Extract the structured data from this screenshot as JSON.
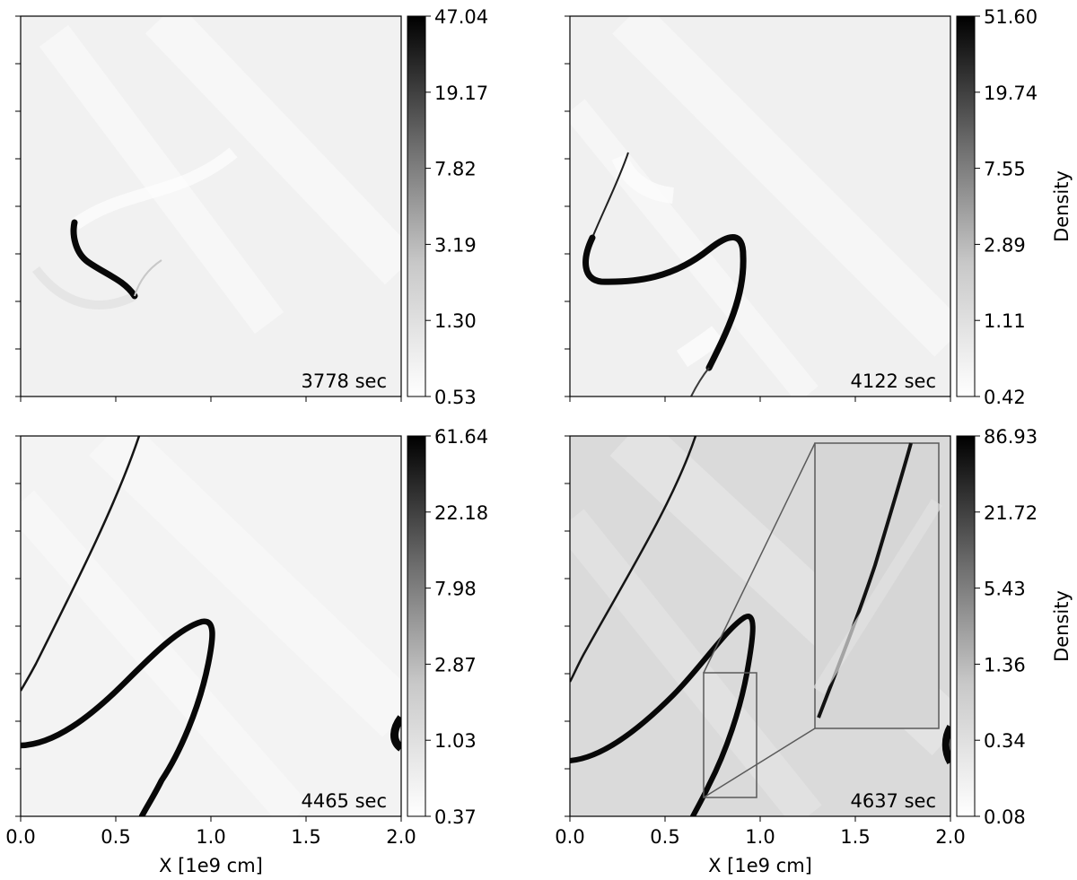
{
  "chart_data": [
    {
      "type": "heatmap",
      "panel": "top-left",
      "time_label": "3778 sec",
      "colorbar": {
        "ticks": [
          "47.04",
          "19.17",
          "7.82",
          "3.19",
          "1.30",
          "0.53"
        ],
        "scale": "log",
        "label": ""
      },
      "x_ticks": [],
      "xlabel": ""
    },
    {
      "type": "heatmap",
      "panel": "top-right",
      "time_label": "4122 sec",
      "colorbar": {
        "ticks": [
          "51.60",
          "19.74",
          "7.55",
          "2.89",
          "1.11",
          "0.42"
        ],
        "scale": "log",
        "label": "Density"
      },
      "x_ticks": [],
      "xlabel": ""
    },
    {
      "type": "heatmap",
      "panel": "bottom-left",
      "time_label": "4465 sec",
      "colorbar": {
        "ticks": [
          "61.64",
          "22.18",
          "7.98",
          "2.87",
          "1.03",
          "0.37"
        ],
        "scale": "log",
        "label": ""
      },
      "x_ticks": [
        "0.0",
        "0.5",
        "1.0",
        "1.5",
        "2.0"
      ],
      "xlabel": "X [1e9 cm]",
      "xlim": [
        0,
        2
      ]
    },
    {
      "type": "heatmap",
      "panel": "bottom-right",
      "time_label": "4637 sec",
      "colorbar": {
        "ticks": [
          "86.93",
          "21.72",
          "5.43",
          "1.36",
          "0.34",
          "0.08"
        ],
        "scale": "log",
        "label": "Density"
      },
      "x_ticks": [
        "0.0",
        "0.5",
        "1.0",
        "1.5",
        "2.0"
      ],
      "xlabel": "X [1e9 cm]",
      "xlim": [
        0,
        2
      ],
      "inset_zoom": true
    }
  ]
}
